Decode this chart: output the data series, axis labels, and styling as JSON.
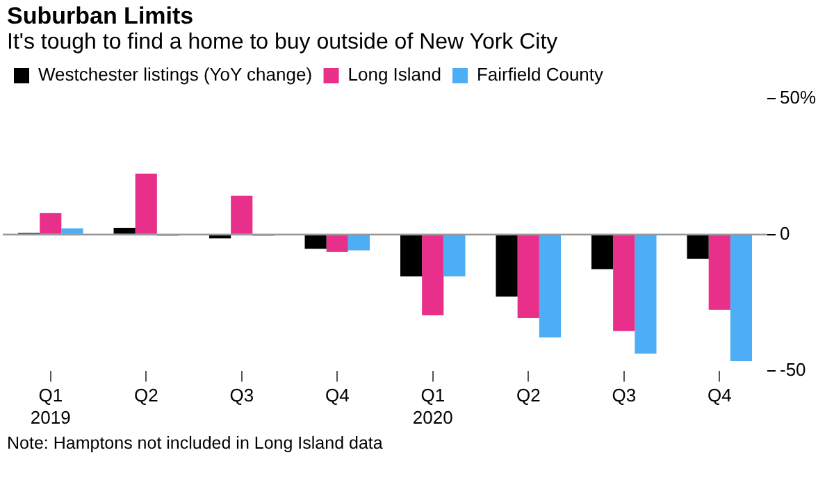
{
  "chart_data": {
    "type": "bar",
    "title": "Suburban Limits",
    "subtitle": "It's tough to find a home to buy outside of New York City",
    "categories": [
      "Q1\n2019",
      "Q2",
      "Q3",
      "Q4",
      "Q1\n2020",
      "Q2",
      "Q3",
      "Q4"
    ],
    "series": [
      {
        "name": "Westchester listings (YoY change)",
        "color": "#000000",
        "values": [
          0.6,
          2.5,
          -1.4,
          -5.2,
          -15.4,
          -22.8,
          -12.7,
          -8.9
        ]
      },
      {
        "name": "Long Island",
        "color": "#e8308a",
        "values": [
          7.9,
          22.4,
          14.3,
          -6.4,
          -29.7,
          -30.7,
          -35.5,
          -27.6
        ]
      },
      {
        "name": "Fairfield County",
        "color": "#4eaef5",
        "values": [
          2.3,
          -0.5,
          -0.5,
          -5.8,
          -15.4,
          -37.8,
          -43.8,
          -46.5
        ]
      }
    ],
    "ylim": [
      -50,
      50
    ],
    "yticks": [
      {
        "value": 50,
        "label": "50%"
      },
      0,
      -50
    ],
    "ref_lines": [
      {
        "axis": "y",
        "value": 0,
        "color": "#999999"
      }
    ],
    "grid": false,
    "legend": "top left",
    "annotations": [
      "Note: Hamptons not included in Long Island data"
    ]
  }
}
